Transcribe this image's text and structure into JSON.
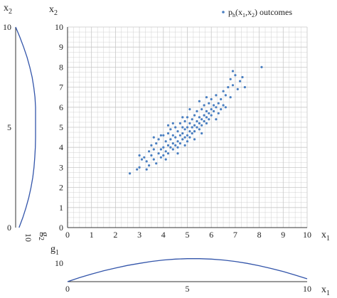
{
  "chart_data": [
    {
      "type": "scatter",
      "panel": "main",
      "xlabel": "x₁",
      "ylabel": "x₂",
      "xlim": [
        0,
        10
      ],
      "ylim": [
        0,
        10
      ],
      "xticks": [
        "0",
        "1",
        "2",
        "3",
        "4",
        "5",
        "6",
        "7",
        "8",
        "9",
        "10"
      ],
      "yticks": [
        "0",
        "1",
        "2",
        "3",
        "4",
        "5",
        "6",
        "7",
        "8",
        "9",
        "10"
      ],
      "grid": true,
      "minor_grid": true,
      "legend_position": "top-right",
      "series": [
        {
          "name": "p_h(x1,x2) outcomes",
          "color": "#4a7fc1",
          "marker": "dot",
          "points": [
            [
              2.6,
              2.7
            ],
            [
              2.9,
              2.9
            ],
            [
              3.0,
              3.0
            ],
            [
              3.1,
              3.4
            ],
            [
              3.2,
              3.5
            ],
            [
              3.3,
              3.3
            ],
            [
              3.4,
              3.8
            ],
            [
              3.4,
              3.1
            ],
            [
              3.5,
              3.6
            ],
            [
              3.5,
              4.1
            ],
            [
              3.6,
              3.4
            ],
            [
              3.6,
              3.9
            ],
            [
              3.7,
              3.2
            ],
            [
              3.7,
              4.2
            ],
            [
              3.8,
              3.7
            ],
            [
              3.8,
              4.4
            ],
            [
              3.9,
              3.9
            ],
            [
              3.9,
              3.5
            ],
            [
              4.0,
              4.0
            ],
            [
              4.0,
              4.6
            ],
            [
              4.0,
              3.6
            ],
            [
              4.1,
              4.3
            ],
            [
              4.1,
              3.8
            ],
            [
              4.2,
              4.1
            ],
            [
              4.2,
              4.7
            ],
            [
              4.2,
              3.7
            ],
            [
              4.3,
              4.4
            ],
            [
              4.3,
              4.0
            ],
            [
              4.3,
              4.9
            ],
            [
              4.4,
              4.2
            ],
            [
              4.4,
              4.6
            ],
            [
              4.4,
              3.9
            ],
            [
              4.5,
              4.5
            ],
            [
              4.5,
              5.0
            ],
            [
              4.5,
              4.1
            ],
            [
              4.6,
              4.3
            ],
            [
              4.6,
              4.8
            ],
            [
              4.6,
              4.0
            ],
            [
              4.7,
              4.6
            ],
            [
              4.7,
              5.2
            ],
            [
              4.7,
              4.2
            ],
            [
              4.8,
              4.7
            ],
            [
              4.8,
              4.4
            ],
            [
              4.8,
              5.0
            ],
            [
              4.9,
              4.5
            ],
            [
              4.9,
              4.9
            ],
            [
              4.9,
              5.3
            ],
            [
              5.0,
              4.6
            ],
            [
              5.0,
              5.0
            ],
            [
              5.0,
              4.3
            ],
            [
              5.0,
              5.5
            ],
            [
              5.1,
              4.8
            ],
            [
              5.1,
              5.2
            ],
            [
              5.1,
              4.5
            ],
            [
              5.2,
              5.0
            ],
            [
              5.2,
              5.4
            ],
            [
              5.2,
              4.7
            ],
            [
              5.3,
              5.1
            ],
            [
              5.3,
              5.6
            ],
            [
              5.3,
              4.8
            ],
            [
              5.4,
              5.3
            ],
            [
              5.4,
              5.0
            ],
            [
              5.4,
              5.8
            ],
            [
              5.5,
              5.2
            ],
            [
              5.5,
              5.5
            ],
            [
              5.5,
              4.9
            ],
            [
              5.6,
              5.4
            ],
            [
              5.6,
              5.9
            ],
            [
              5.6,
              5.1
            ],
            [
              5.7,
              5.6
            ],
            [
              5.7,
              5.3
            ],
            [
              5.7,
              6.1
            ],
            [
              5.8,
              5.5
            ],
            [
              5.8,
              5.8
            ],
            [
              5.8,
              5.2
            ],
            [
              5.9,
              5.7
            ],
            [
              5.9,
              6.2
            ],
            [
              5.9,
              5.4
            ],
            [
              6.0,
              5.9
            ],
            [
              6.0,
              5.6
            ],
            [
              6.0,
              6.4
            ],
            [
              6.1,
              5.8
            ],
            [
              6.1,
              6.1
            ],
            [
              6.2,
              6.0
            ],
            [
              6.2,
              6.6
            ],
            [
              6.3,
              6.2
            ],
            [
              6.3,
              5.7
            ],
            [
              6.4,
              6.4
            ],
            [
              6.5,
              6.8
            ],
            [
              6.5,
              6.1
            ],
            [
              6.6,
              6.6
            ],
            [
              6.7,
              7.0
            ],
            [
              6.8,
              6.5
            ],
            [
              6.8,
              7.4
            ],
            [
              6.9,
              7.1
            ],
            [
              7.0,
              7.6
            ],
            [
              7.1,
              6.9
            ],
            [
              7.2,
              7.3
            ],
            [
              7.3,
              7.5
            ],
            [
              8.1,
              8.0
            ],
            [
              3.3,
              2.9
            ],
            [
              3.9,
              4.6
            ],
            [
              4.4,
              5.2
            ],
            [
              5.3,
              4.4
            ],
            [
              5.8,
              6.5
            ],
            [
              6.4,
              5.9
            ],
            [
              4.1,
              3.4
            ],
            [
              4.8,
              5.5
            ],
            [
              5.6,
              4.7
            ],
            [
              6.9,
              7.8
            ],
            [
              3.6,
              4.5
            ],
            [
              4.6,
              3.7
            ],
            [
              5.1,
              5.9
            ],
            [
              6.2,
              5.4
            ],
            [
              7.4,
              7.0
            ],
            [
              3.0,
              3.6
            ],
            [
              4.2,
              5.1
            ],
            [
              5.5,
              6.3
            ],
            [
              6.6,
              6.0
            ],
            [
              4.9,
              4.1
            ]
          ]
        }
      ]
    },
    {
      "type": "line",
      "panel": "left-marginal",
      "xlabel": "g₂",
      "ylabel": "x₂",
      "xticks": [
        "10"
      ],
      "yticks": [
        "0",
        "5",
        "10"
      ],
      "ylim": [
        0,
        10
      ],
      "series": [
        {
          "color": "#3355aa",
          "x": [
            0.0,
            0.21,
            0.4,
            0.57,
            0.71,
            0.83,
            0.91,
            0.97,
            1.0,
            1.0,
            1.0,
            1.0,
            0.99,
            0.96,
            0.92,
            0.86,
            0.77,
            0.66,
            0.52,
            0.36,
            0.17
          ],
          "y": [
            10.0,
            9.5,
            9.0,
            8.5,
            8.0,
            7.5,
            7.0,
            6.5,
            6.0,
            5.5,
            5.0,
            4.5,
            4.0,
            3.5,
            3.0,
            2.5,
            2.0,
            1.5,
            1.0,
            0.5,
            0.0
          ]
        }
      ]
    },
    {
      "type": "line",
      "panel": "bottom-marginal",
      "xlabel": "x₁",
      "ylabel": "g₁",
      "xticks": [
        "0",
        "5",
        "10"
      ],
      "yticks": [
        "10"
      ],
      "xlim": [
        0,
        10
      ],
      "series": [
        {
          "color": "#3355aa",
          "x": [
            0.0,
            0.5,
            1.0,
            1.5,
            2.0,
            2.5,
            3.0,
            3.5,
            4.0,
            4.5,
            5.0,
            5.5,
            6.0,
            6.5,
            7.0,
            7.5,
            8.0,
            8.5,
            9.0,
            9.5,
            10.0
          ],
          "y": [
            0.0,
            0.17,
            0.32,
            0.46,
            0.58,
            0.69,
            0.78,
            0.86,
            0.92,
            0.96,
            0.98,
            0.98,
            0.96,
            0.92,
            0.86,
            0.78,
            0.68,
            0.56,
            0.43,
            0.28,
            0.12
          ]
        }
      ]
    }
  ],
  "legend": {
    "label_p": "p",
    "label_sub_h": "h",
    "label_open": "(x",
    "label_sub_1": "1",
    "label_comma": ",x",
    "label_sub_2": "2",
    "label_close": ") outcomes"
  },
  "axis_titles": {
    "main_y_base": "x",
    "main_y_sub": "2",
    "main_x_base": "x",
    "main_x_sub": "1",
    "left_y_base": "x",
    "left_y_sub": "2",
    "left_x_base": "g",
    "left_x_sub": "2",
    "bottom_y_base": "g",
    "bottom_y_sub": "1",
    "bottom_x_base": "x",
    "bottom_x_sub": "1"
  },
  "colors": {
    "points": "#4a7fc1",
    "curve": "#3355aa",
    "grid": "#c8c8c8",
    "axis": "#333333"
  }
}
